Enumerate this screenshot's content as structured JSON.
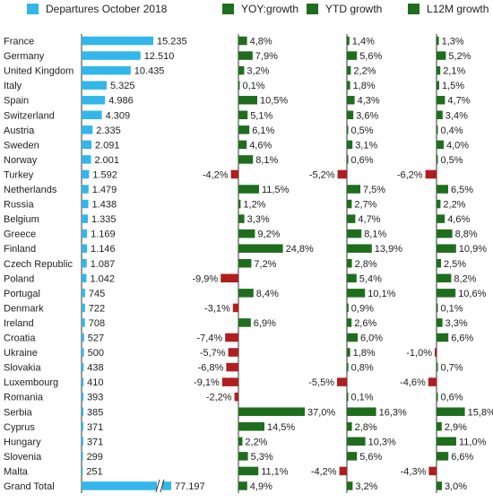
{
  "chart_data": {
    "type": "bar",
    "legend": [
      {
        "name": "Departures October 2018",
        "color": "#33b6ea"
      },
      {
        "name": "YOY:growth",
        "color": "#1e6e1e"
      },
      {
        "name": "YTD growth",
        "color": "#1e6e1e"
      },
      {
        "name": "L12M growth",
        "color": "#1e6e1e"
      }
    ],
    "legend_position": "top",
    "categories": [
      "France",
      "Germany",
      "United Kingdom",
      "Italy",
      "Spain",
      "Switzerland",
      "Austria",
      "Sweden",
      "Norway",
      "Turkey",
      "Netherlands",
      "Russia",
      "Belgium",
      "Greece",
      "Finland",
      "Czech Republic",
      "Poland",
      "Portugal",
      "Denmark",
      "Ireland",
      "Croatia",
      "Ukraine",
      "Slovakia",
      "Luxembourg",
      "Romania",
      "Serbia",
      "Cyprus",
      "Hungary",
      "Slovenia",
      "Malta",
      "Grand Total"
    ],
    "departures": {
      "values": [
        15235,
        12510,
        10435,
        5325,
        4986,
        4309,
        2335,
        2091,
        2001,
        1592,
        1479,
        1438,
        1335,
        1169,
        1146,
        1087,
        1042,
        745,
        722,
        708,
        527,
        500,
        438,
        410,
        393,
        385,
        371,
        371,
        299,
        251,
        77197
      ],
      "labels": [
        "15.235",
        "12.510",
        "10.435",
        "5.325",
        "4.986",
        "4.309",
        "2.335",
        "2.091",
        "2.001",
        "1.592",
        "1.479",
        "1.438",
        "1.335",
        "1.169",
        "1.146",
        "1.087",
        "1.042",
        "745",
        "722",
        "708",
        "527",
        "500",
        "438",
        "410",
        "393",
        "385",
        "371",
        "371",
        "299",
        "251",
        "77.197"
      ],
      "axis_break_on": "Grand Total"
    },
    "series": [
      {
        "name": "YOY:growth",
        "values": [
          4.8,
          7.9,
          3.2,
          0.1,
          10.5,
          5.1,
          6.1,
          4.6,
          8.1,
          -4.2,
          11.5,
          1.2,
          3.3,
          9.2,
          24.8,
          7.2,
          -9.9,
          8.4,
          -3.1,
          6.9,
          -7.4,
          -5.7,
          -6.8,
          -9.1,
          -2.2,
          37.0,
          14.5,
          2.2,
          5.3,
          11.1,
          4.9
        ],
        "labels": [
          "4,8%",
          "7,9%",
          "3,2%",
          "0,1%",
          "10,5%",
          "5,1%",
          "6,1%",
          "4,6%",
          "8,1%",
          "-4,2%",
          "11,5%",
          "1,2%",
          "3,3%",
          "9,2%",
          "24,8%",
          "7,2%",
          "-9,9%",
          "8,4%",
          "-3,1%",
          "6,9%",
          "-7,4%",
          "-5,7%",
          "-6,8%",
          "-9,1%",
          "-2,2%",
          "37,0%",
          "14,5%",
          "2,2%",
          "5,3%",
          "11,1%",
          "4,9%"
        ]
      },
      {
        "name": "YTD growth",
        "values": [
          1.4,
          5.6,
          2.2,
          1.8,
          4.3,
          3.6,
          0.5,
          3.1,
          0.6,
          -5.2,
          7.5,
          2.7,
          4.7,
          8.1,
          13.9,
          2.8,
          5.4,
          10.1,
          0.9,
          2.6,
          6.0,
          1.8,
          0.8,
          -5.5,
          0.1,
          16.3,
          2.8,
          10.3,
          5.6,
          -4.2,
          3.2
        ],
        "labels": [
          "1,4%",
          "5,6%",
          "2,2%",
          "1,8%",
          "4,3%",
          "3,6%",
          "0,5%",
          "3,1%",
          "0,6%",
          "-5,2%",
          "7,5%",
          "2,7%",
          "4,7%",
          "8,1%",
          "13,9%",
          "2,8%",
          "5,4%",
          "10,1%",
          "0,9%",
          "2,6%",
          "6,0%",
          "1,8%",
          "0,8%",
          "-5,5%",
          "0,1%",
          "16,3%",
          "2,8%",
          "10,3%",
          "5,6%",
          "-4,2%",
          "3,2%"
        ]
      },
      {
        "name": "L12M growth",
        "values": [
          1.3,
          5.2,
          2.1,
          1.5,
          4.7,
          3.4,
          0.4,
          4.0,
          0.5,
          -6.2,
          6.5,
          2.2,
          4.6,
          8.8,
          10.9,
          2.5,
          8.2,
          10.6,
          0.1,
          3.3,
          6.6,
          -1.0,
          0.7,
          -4.6,
          0.6,
          15.8,
          2.9,
          11.0,
          6.6,
          -4.3,
          3.0
        ],
        "labels": [
          "1,3%",
          "5,2%",
          "2,1%",
          "1,5%",
          "4,7%",
          "3,4%",
          "0,4%",
          "4,0%",
          "0,5%",
          "-6,2%",
          "6,5%",
          "2,2%",
          "4,6%",
          "8,8%",
          "10,9%",
          "2,5%",
          "8,2%",
          "10,6%",
          "0,1%",
          "3,3%",
          "6,6%",
          "-1,0%",
          "0,7%",
          "-4,6%",
          "0,6%",
          "15,8%",
          "2,9%",
          "11,0%",
          "6,6%",
          "-4,3%",
          "3,0%"
        ]
      }
    ],
    "colors": {
      "departures": "#33b6ea",
      "positive": "#1e6e1e",
      "negative": "#b01e1e",
      "axis": "#333333"
    }
  }
}
